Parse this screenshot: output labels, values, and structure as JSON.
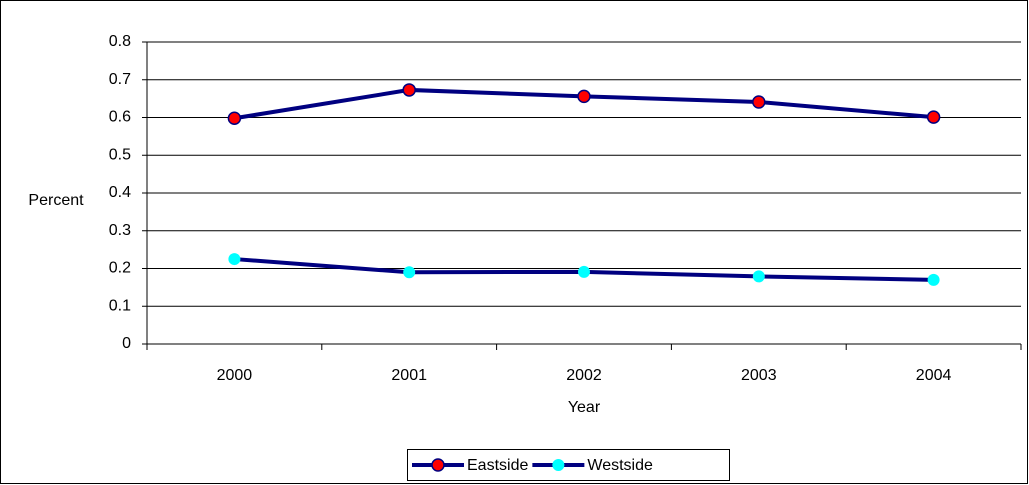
{
  "chart_data": {
    "type": "line",
    "x_label": "Year",
    "y_label": "Percent",
    "categories": [
      "2000",
      "2001",
      "2002",
      "2003",
      "2004"
    ],
    "series": [
      {
        "name": "Eastside",
        "color": "#000080",
        "marker_color": "#ff0000",
        "values": [
          0.598,
          0.673,
          0.656,
          0.641,
          0.601
        ]
      },
      {
        "name": "Westside",
        "color": "#000080",
        "marker_color": "#00ffff",
        "values": [
          0.225,
          0.19,
          0.191,
          0.179,
          0.17
        ]
      }
    ],
    "ylim": [
      0,
      0.8
    ],
    "yticks": [
      0,
      0.1,
      0.2,
      0.3,
      0.4,
      0.5,
      0.6,
      0.7,
      0.8
    ],
    "grid": true,
    "legend": "bottom"
  }
}
